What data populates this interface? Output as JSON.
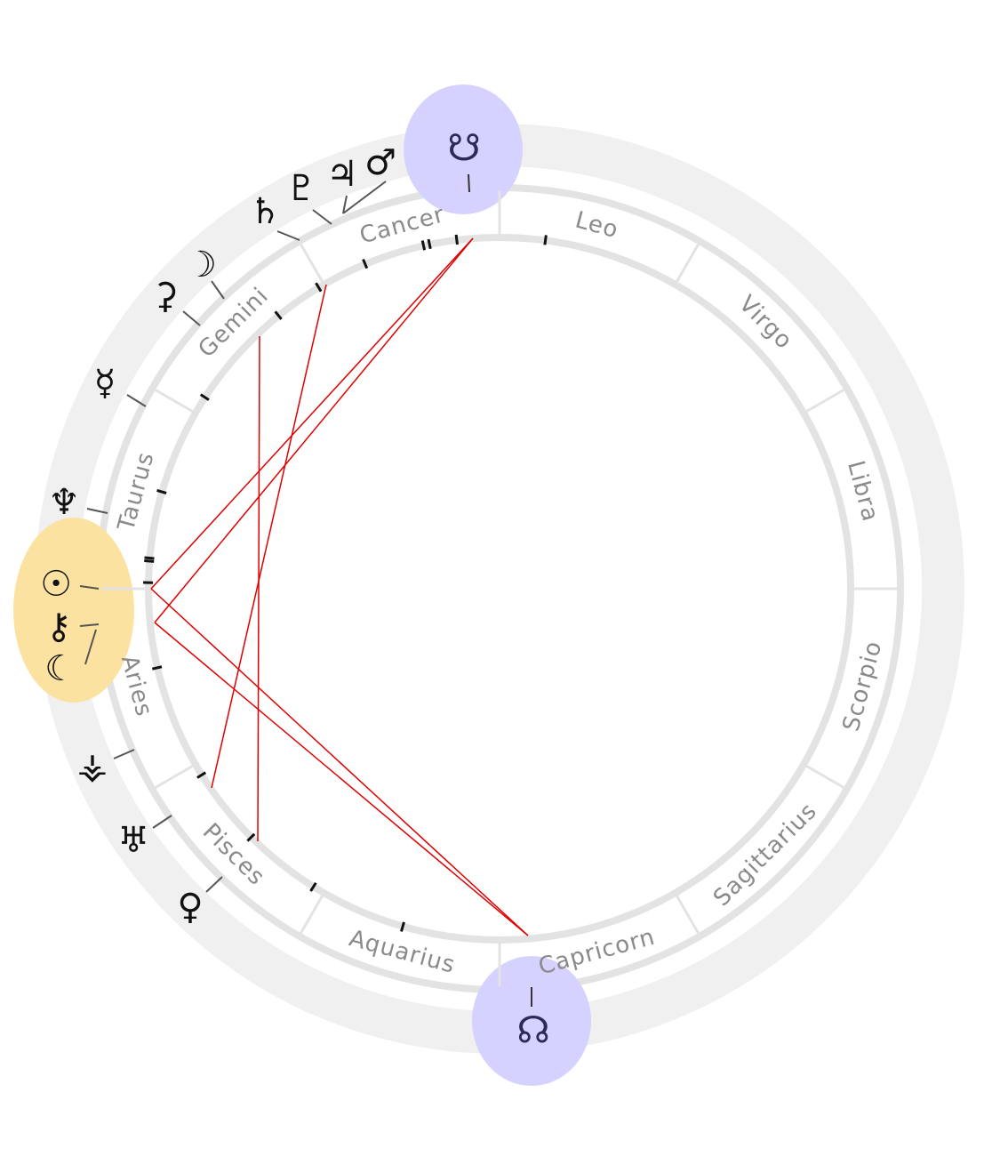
{
  "wheel": {
    "signs": [
      {
        "name": "Aries",
        "label": "Aries"
      },
      {
        "name": "Taurus",
        "label": "Taurus"
      },
      {
        "name": "Gemini",
        "label": "Gemini"
      },
      {
        "name": "Cancer",
        "label": "Cancer"
      },
      {
        "name": "Leo",
        "label": "Leo"
      },
      {
        "name": "Virgo",
        "label": "Virgo"
      },
      {
        "name": "Libra",
        "label": "Libra"
      },
      {
        "name": "Scorpio",
        "label": "Scorpio"
      },
      {
        "name": "Sagittarius",
        "label": "Sagittarius"
      },
      {
        "name": "Capricorn",
        "label": "Capricorn"
      },
      {
        "name": "Aquarius",
        "label": "Aquarius"
      },
      {
        "name": "Pisces",
        "label": "Pisces"
      }
    ],
    "planets": [
      {
        "id": "sun",
        "glyph": "☉",
        "highlighted": true
      },
      {
        "id": "chiron",
        "glyph": "⚷",
        "highlighted": true
      },
      {
        "id": "moon",
        "glyph": "☾",
        "highlighted": true
      },
      {
        "id": "neptune",
        "glyph": "♆",
        "highlighted": false
      },
      {
        "id": "mercury",
        "glyph": "☿",
        "highlighted": false
      },
      {
        "id": "ceres",
        "glyph": "⚳",
        "highlighted": false
      },
      {
        "id": "moon-2",
        "glyph": "☽",
        "highlighted": false
      },
      {
        "id": "saturn",
        "glyph": "♄",
        "highlighted": false
      },
      {
        "id": "pluto",
        "glyph": "♇",
        "highlighted": false
      },
      {
        "id": "jupiter",
        "glyph": "♃",
        "highlighted": false
      },
      {
        "id": "mars",
        "glyph": "♂",
        "highlighted": false
      },
      {
        "id": "vesta",
        "glyph": "⚶",
        "highlighted": false
      },
      {
        "id": "uranus",
        "glyph": "♅",
        "highlighted": false
      },
      {
        "id": "venus",
        "glyph": "♀",
        "highlighted": false
      }
    ],
    "nodes": [
      {
        "id": "south-node",
        "glyph": "☋"
      },
      {
        "id": "north-node",
        "glyph": "☊"
      }
    ],
    "colors": {
      "outer_ring": "#f0f0f0",
      "zodiac_ring": "#e3e3e3",
      "sign_text": "#8a8a8a",
      "aspect_line": "#e00000",
      "highlight_yellow": "#fbe2a0",
      "highlight_purple": "#d6d2ff",
      "glyph": "#111111"
    }
  }
}
